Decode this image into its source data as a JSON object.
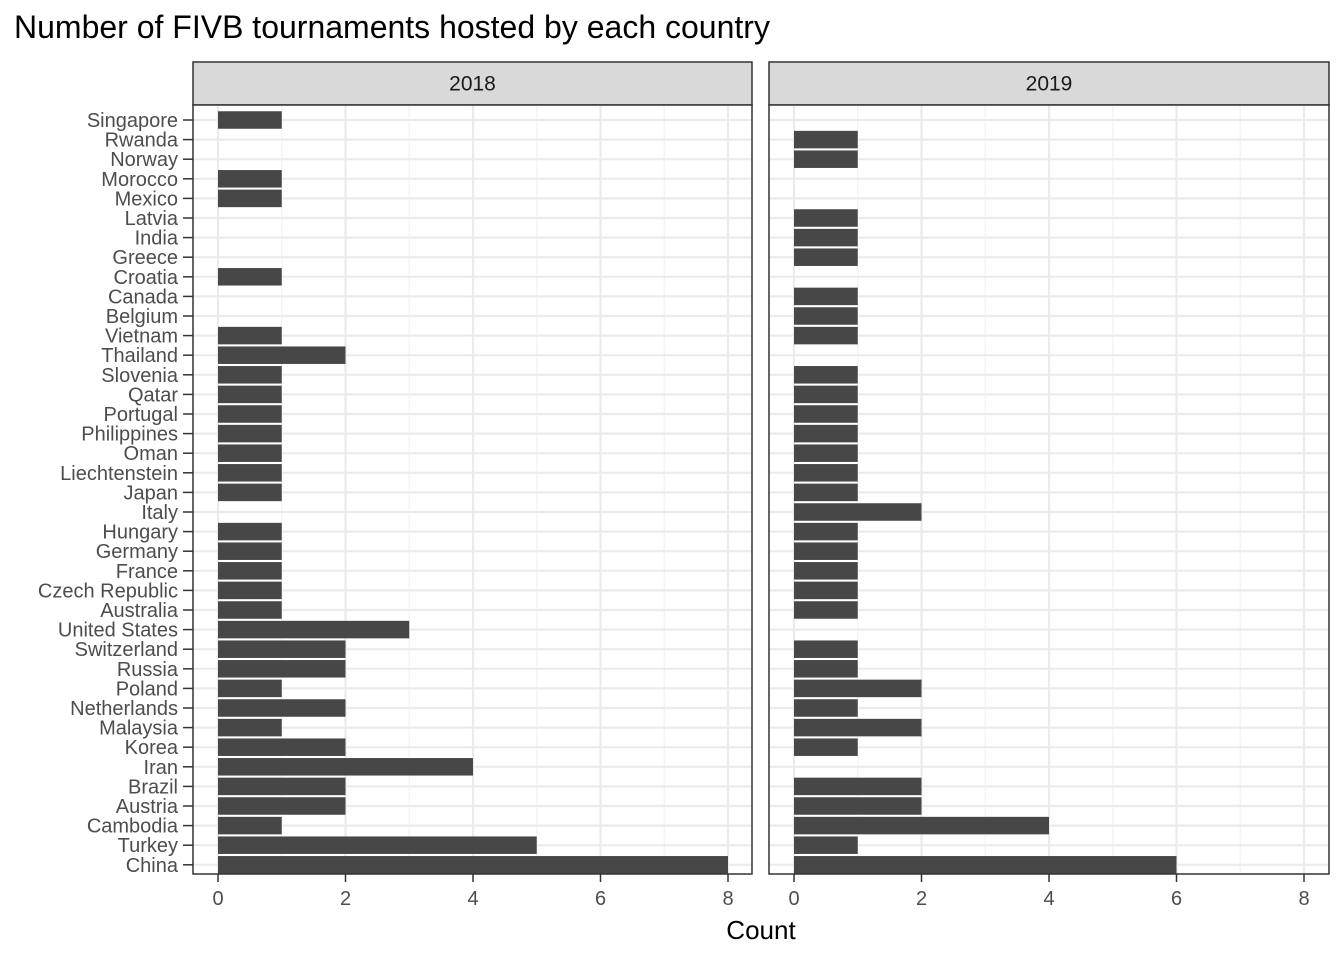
{
  "chart_data": {
    "type": "bar",
    "orientation": "horizontal",
    "title": "Number of FIVB tournaments hosted by each country",
    "xlabel": "Count",
    "ylabel": "",
    "xlim": [
      0,
      8.4
    ],
    "x_ticks": [
      0,
      2,
      4,
      6,
      8
    ],
    "grid": true,
    "bar_color": "#474747",
    "categories": [
      "Singapore",
      "Rwanda",
      "Norway",
      "Morocco",
      "Mexico",
      "Latvia",
      "India",
      "Greece",
      "Croatia",
      "Canada",
      "Belgium",
      "Vietnam",
      "Thailand",
      "Slovenia",
      "Qatar",
      "Portugal",
      "Philippines",
      "Oman",
      "Liechtenstein",
      "Japan",
      "Italy",
      "Hungary",
      "Germany",
      "France",
      "Czech Republic",
      "Australia",
      "United States",
      "Switzerland",
      "Russia",
      "Poland",
      "Netherlands",
      "Malaysia",
      "Korea",
      "Iran",
      "Brazil",
      "Austria",
      "Cambodia",
      "Turkey",
      "China"
    ],
    "panels": [
      {
        "name": "2018",
        "values": [
          1,
          0,
          0,
          1,
          1,
          0,
          0,
          0,
          1,
          0,
          0,
          1,
          2,
          1,
          1,
          1,
          1,
          1,
          1,
          1,
          0,
          1,
          1,
          1,
          1,
          1,
          3,
          2,
          2,
          1,
          2,
          1,
          2,
          4,
          2,
          2,
          1,
          5,
          8
        ]
      },
      {
        "name": "2019",
        "values": [
          0,
          1,
          1,
          0,
          0,
          1,
          1,
          1,
          0,
          1,
          1,
          1,
          0,
          1,
          1,
          1,
          1,
          1,
          1,
          1,
          2,
          1,
          1,
          1,
          1,
          1,
          0,
          1,
          1,
          2,
          1,
          2,
          1,
          0,
          2,
          2,
          4,
          1,
          6
        ]
      }
    ]
  }
}
